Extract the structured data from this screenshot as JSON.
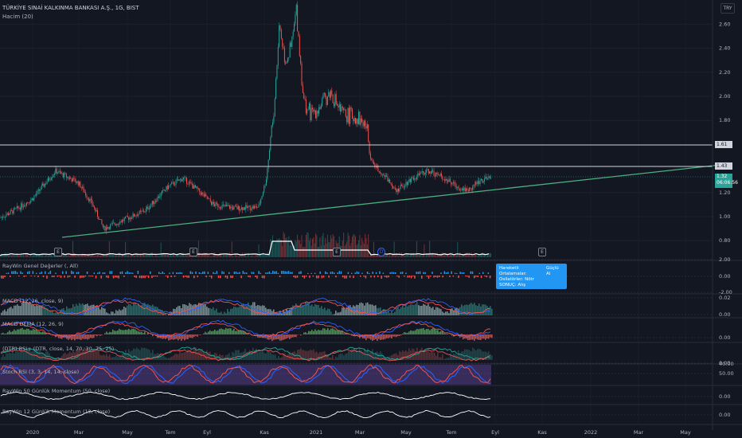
{
  "header": {
    "title": "TÜRKİYE SINAİ KALKINMA BANKASI A.Ş., 1G, BIST",
    "volume_label": "Hacim (20)",
    "currency": "TRY"
  },
  "chart_data": {
    "type": "candlestick",
    "symbol": "TÜRKİYE SINAİ KALKINMA BANKASI A.Ş.",
    "interval": "1G",
    "exchange": "BIST",
    "yticks": [
      "2.60",
      "2.40",
      "2.20",
      "2.00",
      "1.80",
      "1.20",
      "1.00",
      "0.80"
    ],
    "ylim": [
      0.72,
      2.8
    ],
    "xticks": [
      "2020",
      "Mar",
      "May",
      "Tem",
      "Eyl",
      "Kas",
      "2021",
      "Mar",
      "May",
      "Tem",
      "Eyl",
      "Kas",
      "2022",
      "Mar",
      "May"
    ],
    "price_series": [
      [
        "2019-11-01",
        0.99
      ],
      [
        "2019-11-20",
        1.05
      ],
      [
        "2019-12-15",
        1.15
      ],
      [
        "2020-01-15",
        1.38
      ],
      [
        "2020-02-15",
        1.28
      ],
      [
        "2020-03-05",
        1.1
      ],
      [
        "2020-03-20",
        0.9
      ],
      [
        "2020-04-15",
        0.97
      ],
      [
        "2020-05-15",
        1.05
      ],
      [
        "2020-06-15",
        1.25
      ],
      [
        "2020-07-05",
        1.32
      ],
      [
        "2020-07-25",
        1.22
      ],
      [
        "2020-08-15",
        1.1
      ],
      [
        "2020-09-15",
        1.07
      ],
      [
        "2020-10-15",
        1.08
      ],
      [
        "2020-10-25",
        1.3
      ],
      [
        "2020-11-05",
        1.9
      ],
      [
        "2020-11-12",
        2.6
      ],
      [
        "2020-11-20",
        2.3
      ],
      [
        "2020-11-28",
        2.4
      ],
      [
        "2020-12-05",
        2.72
      ],
      [
        "2020-12-15",
        1.95
      ],
      [
        "2020-12-25",
        1.85
      ],
      [
        "2021-01-10",
        1.95
      ],
      [
        "2021-01-20",
        2.04
      ],
      [
        "2021-02-05",
        1.85
      ],
      [
        "2021-02-25",
        1.83
      ],
      [
        "2021-03-10",
        1.75
      ],
      [
        "2021-03-15",
        1.47
      ],
      [
        "2021-04-01",
        1.35
      ],
      [
        "2021-04-20",
        1.22
      ],
      [
        "2021-05-10",
        1.32
      ],
      [
        "2021-06-01",
        1.38
      ],
      [
        "2021-06-20",
        1.33
      ],
      [
        "2021-07-10",
        1.25
      ],
      [
        "2021-07-25",
        1.22
      ],
      [
        "2021-08-10",
        1.3
      ],
      [
        "2021-08-25",
        1.32
      ]
    ],
    "horizontal_lines": [
      "1.61",
      "1.43"
    ],
    "last_price": "1.32",
    "countdown": "06:06:56",
    "earnings_markers": [
      "E",
      "E",
      "E",
      "D",
      "E"
    ],
    "indicators": [
      {
        "name": "RayWin Genel Değerler (, All)",
        "yticks": [
          "2.00",
          "0.00",
          "-2.00"
        ]
      },
      {
        "name": "MACD (12, 26, close, 9)",
        "yticks": [
          "0.02",
          "0.00"
        ]
      },
      {
        "name": "MACD DEMA (12, 26, 9)",
        "yticks": [
          "0.00"
        ]
      },
      {
        "name": "(DTR) RSI+ (DTR, close, 14, 70, 30, 75, 25)",
        "yticks": [
          "0.00"
        ]
      },
      {
        "name": "Stoch RSI (3, 3, 14, 14, close)",
        "yticks": [
          "40.00",
          "50.00"
        ]
      },
      {
        "name": "RayWin 50 Günlük Momentum (50, close)",
        "yticks": [
          "0.00"
        ]
      },
      {
        "name": "RayWin 12 Günlük Momentum (12, close)",
        "yticks": [
          "0.00"
        ]
      }
    ]
  },
  "info_box": {
    "l1k": "Hareketli Ortalamalar:",
    "l1v": "Güçlü Al",
    "l2": "Osilatörler: Nötr",
    "l3": "SONUÇ: Alış"
  }
}
